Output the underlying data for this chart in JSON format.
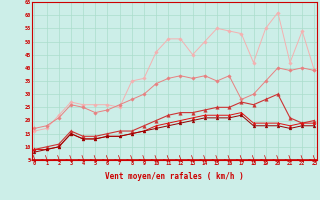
{
  "x": [
    0,
    1,
    2,
    3,
    4,
    5,
    6,
    7,
    8,
    9,
    10,
    11,
    12,
    13,
    14,
    15,
    16,
    17,
    18,
    19,
    20,
    21,
    22,
    23
  ],
  "series": [
    {
      "name": "line1_lightest_pink",
      "color": "#f5b0b0",
      "marker": "D",
      "markersize": 1.8,
      "linewidth": 0.7,
      "y": [
        16,
        17,
        22,
        27,
        26,
        26,
        26,
        25,
        35,
        36,
        46,
        51,
        51,
        45,
        50,
        55,
        54,
        53,
        42,
        55,
        61,
        42,
        54,
        39
      ]
    },
    {
      "name": "line2_pink",
      "color": "#e88080",
      "marker": "D",
      "markersize": 1.8,
      "linewidth": 0.7,
      "y": [
        17,
        18,
        21,
        26,
        25,
        23,
        24,
        26,
        28,
        30,
        34,
        36,
        37,
        36,
        37,
        35,
        37,
        28,
        30,
        35,
        40,
        39,
        40,
        39
      ]
    },
    {
      "name": "line3_medium_red",
      "color": "#cc3333",
      "marker": "^",
      "markersize": 2.5,
      "linewidth": 0.8,
      "y": [
        9,
        10,
        11,
        16,
        14,
        14,
        15,
        16,
        16,
        18,
        20,
        22,
        23,
        23,
        24,
        25,
        25,
        27,
        26,
        28,
        30,
        21,
        19,
        20
      ]
    },
    {
      "name": "line4_red",
      "color": "#dd1111",
      "marker": "^",
      "markersize": 2.0,
      "linewidth": 0.7,
      "y": [
        9,
        9,
        10,
        15,
        13,
        13,
        14,
        14,
        15,
        16,
        18,
        19,
        20,
        21,
        22,
        22,
        22,
        23,
        19,
        19,
        19,
        18,
        19,
        19
      ]
    },
    {
      "name": "line5_dark_red",
      "color": "#990000",
      "marker": "^",
      "markersize": 2.0,
      "linewidth": 0.7,
      "y": [
        8,
        9,
        10,
        15,
        13,
        13,
        14,
        14,
        15,
        16,
        17,
        18,
        19,
        20,
        21,
        21,
        21,
        22,
        18,
        18,
        18,
        17,
        18,
        18
      ]
    }
  ],
  "xlabel": "Vent moyen/en rafales ( km/h )",
  "xlim": [
    0,
    23
  ],
  "ylim": [
    5,
    65
  ],
  "yticks": [
    5,
    10,
    15,
    20,
    25,
    30,
    35,
    40,
    45,
    50,
    55,
    60,
    65
  ],
  "xticks": [
    0,
    1,
    2,
    3,
    4,
    5,
    6,
    7,
    8,
    9,
    10,
    11,
    12,
    13,
    14,
    15,
    16,
    17,
    18,
    19,
    20,
    21,
    22,
    23
  ],
  "background_color": "#cceee8",
  "grid_color": "#aaddcc",
  "axis_color": "#cc0000",
  "tick_color": "#cc0000",
  "label_color": "#cc0000"
}
